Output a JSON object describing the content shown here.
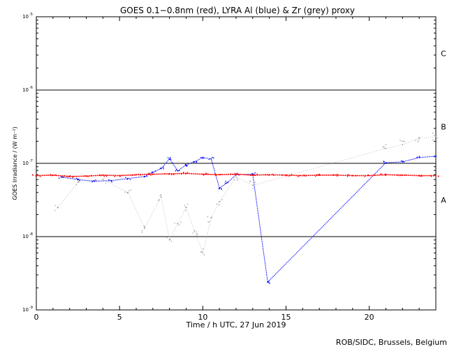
{
  "chart_data": {
    "type": "scatter",
    "title": "GOES 0.1−0.8nm (red), LYRA Al (blue) & Zr (grey) proxy",
    "xlabel": "Time / h UTC, 27 Jun 2019",
    "ylabel": "GOES Irradiance / (W m⁻²)",
    "xlim": [
      0,
      24
    ],
    "ylim": [
      1e-09,
      1e-05
    ],
    "yscale": "log",
    "x_ticks": [
      0,
      5,
      10,
      15,
      20
    ],
    "y_ticks": [
      {
        "value": 1e-09,
        "mant": "10",
        "exp": "-9"
      },
      {
        "value": 1e-08,
        "mant": "10",
        "exp": "-8"
      },
      {
        "value": 1e-07,
        "mant": "10",
        "exp": "-7"
      },
      {
        "value": 1e-06,
        "mant": "10",
        "exp": "-6"
      },
      {
        "value": 1e-05,
        "mant": "10",
        "exp": "-5"
      }
    ],
    "flare_thresholds": [
      1e-08,
      1e-07,
      1e-06
    ],
    "flare_classes": [
      {
        "label": "A",
        "value": 3.16e-08
      },
      {
        "label": "B",
        "value": 3.16e-07
      },
      {
        "label": "C",
        "value": 3.16e-06
      }
    ],
    "series": [
      {
        "name": "GOES 0.1-0.8nm",
        "color": "#ff0000",
        "points": [
          [
            0,
            6.8e-08
          ],
          [
            1,
            6.9e-08
          ],
          [
            2,
            6.6e-08
          ],
          [
            3,
            6.7e-08
          ],
          [
            4,
            6.9e-08
          ],
          [
            5,
            6.8e-08
          ],
          [
            6,
            7e-08
          ],
          [
            7,
            7.1e-08
          ],
          [
            8,
            7.2e-08
          ],
          [
            9,
            7.3e-08
          ],
          [
            10,
            7.1e-08
          ],
          [
            11,
            7e-08
          ],
          [
            12,
            7.1e-08
          ],
          [
            13,
            6.9e-08
          ],
          [
            14,
            7e-08
          ],
          [
            15,
            6.9e-08
          ],
          [
            16,
            6.8e-08
          ],
          [
            17,
            6.9e-08
          ],
          [
            18,
            6.9e-08
          ],
          [
            19,
            6.8e-08
          ],
          [
            20,
            6.8e-08
          ],
          [
            21,
            7e-08
          ],
          [
            22,
            6.9e-08
          ],
          [
            23,
            6.8e-08
          ],
          [
            24,
            6.8e-08
          ]
        ]
      },
      {
        "name": "LYRA Al proxy",
        "color": "#0000ff",
        "points": [
          [
            1.5,
            6.5e-08
          ],
          [
            2.5,
            6e-08
          ],
          [
            3.5,
            5.7e-08
          ],
          [
            4.5,
            5.8e-08
          ],
          [
            5.5,
            6.2e-08
          ],
          [
            6.5,
            6.6e-08
          ],
          [
            7.0,
            7.5e-08
          ],
          [
            7.5,
            8.5e-08
          ],
          [
            8.0,
            1.15e-07
          ],
          [
            8.5,
            7.9e-08
          ],
          [
            9.0,
            9.5e-08
          ],
          [
            9.5,
            1.05e-07
          ],
          [
            10.0,
            1.2e-07
          ],
          [
            10.5,
            1.15e-07
          ],
          [
            11.0,
            4.6e-08
          ],
          [
            11.5,
            5.5e-08
          ],
          [
            12.0,
            7e-08
          ],
          [
            13.0,
            7.1e-08
          ],
          [
            13.9,
            2.4e-09
          ],
          [
            21.0,
            1.02e-07
          ],
          [
            22.0,
            1.05e-07
          ],
          [
            23.0,
            1.2e-07
          ],
          [
            24.0,
            1.25e-07
          ]
        ]
      },
      {
        "name": "LYRA Zr proxy",
        "color": "#808080",
        "points": [
          [
            1.3,
            2.5e-08
          ],
          [
            2.5,
            5.5e-08
          ],
          [
            4.0,
            6e-08
          ],
          [
            5.5,
            4e-08
          ],
          [
            6.5,
            1.3e-08
          ],
          [
            7.5,
            3.5e-08
          ],
          [
            8.0,
            9e-09
          ],
          [
            8.5,
            1.5e-08
          ],
          [
            9.0,
            2.5e-08
          ],
          [
            9.5,
            1.2e-08
          ],
          [
            10.0,
            6e-09
          ],
          [
            10.5,
            1.8e-08
          ],
          [
            11.0,
            3e-08
          ],
          [
            12.0,
            6.5e-08
          ],
          [
            13.0,
            5e-08
          ],
          [
            21.0,
            1.6e-07
          ],
          [
            22.0,
            1.8e-07
          ],
          [
            23.0,
            2.2e-07
          ],
          [
            24.0,
            2.3e-07
          ]
        ]
      }
    ]
  },
  "credit": "ROB/SIDC, Brussels, Belgium"
}
